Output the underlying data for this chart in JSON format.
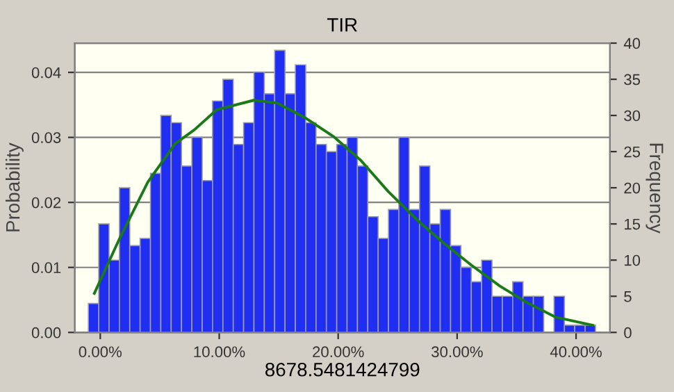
{
  "chart_data": {
    "type": "histogram",
    "title": "TIR",
    "xlabel": "8678.5481424799",
    "ylabel": "Probability",
    "y2label": "Frequency",
    "bins": [
      -1.0,
      -0.13,
      0.74,
      1.61,
      2.48,
      3.35,
      4.22,
      5.09,
      5.96,
      6.83,
      7.7,
      8.57,
      9.44,
      10.31,
      11.18,
      12.05,
      12.92,
      13.79,
      14.66,
      15.53,
      16.4,
      17.27,
      18.14,
      19.01,
      19.88,
      20.75,
      21.62,
      22.49,
      23.36,
      24.23,
      25.1,
      25.97,
      26.84,
      27.71,
      28.58,
      29.45,
      30.32,
      31.19,
      32.06,
      32.93,
      33.8,
      34.67,
      35.54,
      36.41,
      37.28,
      38.15,
      39.02,
      39.89,
      40.76,
      41.63
    ],
    "series": [
      {
        "axis": "y2",
        "color": "#1f2ef0",
        "values": [
          4,
          15,
          10,
          20,
          12,
          13,
          22,
          30,
          29,
          23,
          27,
          21,
          32,
          35,
          26,
          29,
          36,
          33,
          39,
          33,
          37,
          29,
          26,
          25,
          26,
          27,
          23,
          16,
          13,
          17,
          27,
          17,
          23,
          15,
          17,
          12,
          9,
          7,
          10,
          5,
          5,
          7,
          5,
          5,
          0,
          5,
          1,
          1,
          1
        ]
      },
      {
        "type": "line",
        "axis": "y2",
        "color": "#1a7a1a",
        "x": [
          -0.5,
          1.6,
          4.0,
          6.3,
          7.9,
          9.8,
          12.9,
          14.9,
          17.2,
          19.6,
          21.9,
          24.2,
          26.6,
          28.9,
          31.2,
          33.6,
          35.9,
          38.3,
          41.4
        ],
        "values": [
          5.4,
          12.9,
          20.8,
          26.1,
          28.0,
          30.8,
          32.1,
          31.7,
          29.7,
          27.1,
          23.8,
          19.5,
          15.6,
          12.3,
          9.3,
          6.4,
          4.1,
          2.1,
          1.0
        ]
      }
    ],
    "xlim": [
      -2.14,
      42.85
    ],
    "xticks": [
      {
        "value": 0,
        "label": "0.00%"
      },
      {
        "value": 10,
        "label": "10.00%"
      },
      {
        "value": 20,
        "label": "20.00%"
      },
      {
        "value": 30,
        "label": "30.00%"
      },
      {
        "value": 40,
        "label": "40.00%"
      }
    ],
    "ylim": [
      0,
      0.0445
    ],
    "yticks": [
      {
        "value": 0,
        "label": "0.00"
      },
      0.01,
      0.02,
      0.03,
      0.04
    ],
    "y2lim": [
      0,
      40
    ],
    "y2ticks": [
      0,
      5,
      10,
      15,
      20,
      25,
      30,
      35,
      40
    ],
    "grid": "y"
  }
}
